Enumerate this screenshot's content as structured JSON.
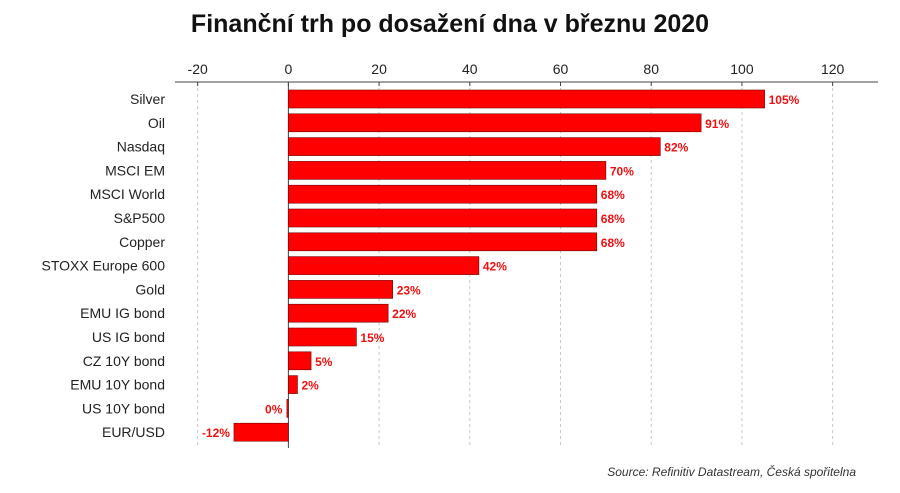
{
  "chart_data": {
    "type": "bar",
    "orientation": "horizontal",
    "title": "Finanční trh po dosažení dna v březnu 2020",
    "source": "Source: Refinitiv Datastream, Česká spořitelna",
    "xlabel": "",
    "ylabel": "",
    "xlim": [
      -25,
      130
    ],
    "xticks": [
      -20,
      0,
      20,
      40,
      60,
      80,
      100,
      120
    ],
    "xaxis_position": "top",
    "grid": "vertical dashed",
    "bar_color": "#ff0000",
    "label_color": "#ee1111",
    "categories": [
      "Silver",
      "Oil",
      "Nasdaq",
      "MSCI EM",
      "MSCI World",
      "S&P500",
      "Copper",
      "STOXX Europe 600",
      "Gold",
      "EMU IG bond",
      "US IG bond",
      "CZ 10Y bond",
      "EMU 10Y bond",
      "US 10Y bond",
      "EUR/USD"
    ],
    "values": [
      105,
      91,
      82,
      70,
      68,
      68,
      68,
      42,
      23,
      22,
      15,
      5,
      2,
      0,
      -12
    ],
    "labels": [
      "105%",
      "91%",
      "82%",
      "70%",
      "68%",
      "68%",
      "68%",
      "42%",
      "23%",
      "22%",
      "15%",
      "5%",
      "2%",
      "0%",
      "-12%"
    ]
  }
}
